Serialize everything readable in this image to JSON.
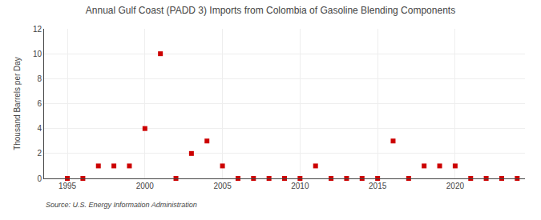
{
  "chart_data": {
    "type": "scatter",
    "title": "Annual Gulf Coast (PADD 3) Imports from Colombia of Gasoline Blending Components",
    "ylabel": "Thousand Barrels per Day",
    "annotations": [
      "Source: U.S. Energy Information Administration"
    ],
    "x": [
      1995,
      1996,
      1997,
      1998,
      1999,
      2000,
      2001,
      2002,
      2003,
      2004,
      2005,
      2006,
      2007,
      2008,
      2009,
      2010,
      2011,
      2012,
      2013,
      2014,
      2015,
      2016,
      2017,
      2018,
      2019,
      2020,
      2021,
      2022,
      2023,
      2024
    ],
    "values": [
      0,
      0,
      1,
      1,
      1,
      4,
      10,
      0,
      2,
      3,
      1,
      0,
      0,
      0,
      0,
      0,
      1,
      0,
      0,
      0,
      0,
      3,
      0,
      1,
      1,
      1,
      0,
      0,
      0,
      0
    ],
    "color": "#cc0000",
    "marker": "square",
    "xlim": [
      1993.5,
      2024.5
    ],
    "ylim": [
      0,
      12
    ],
    "xticks": [
      1995,
      2000,
      2005,
      2010,
      2015,
      2020
    ],
    "yticks": [
      0,
      2,
      4,
      6,
      8,
      10,
      12
    ],
    "grid": true
  }
}
